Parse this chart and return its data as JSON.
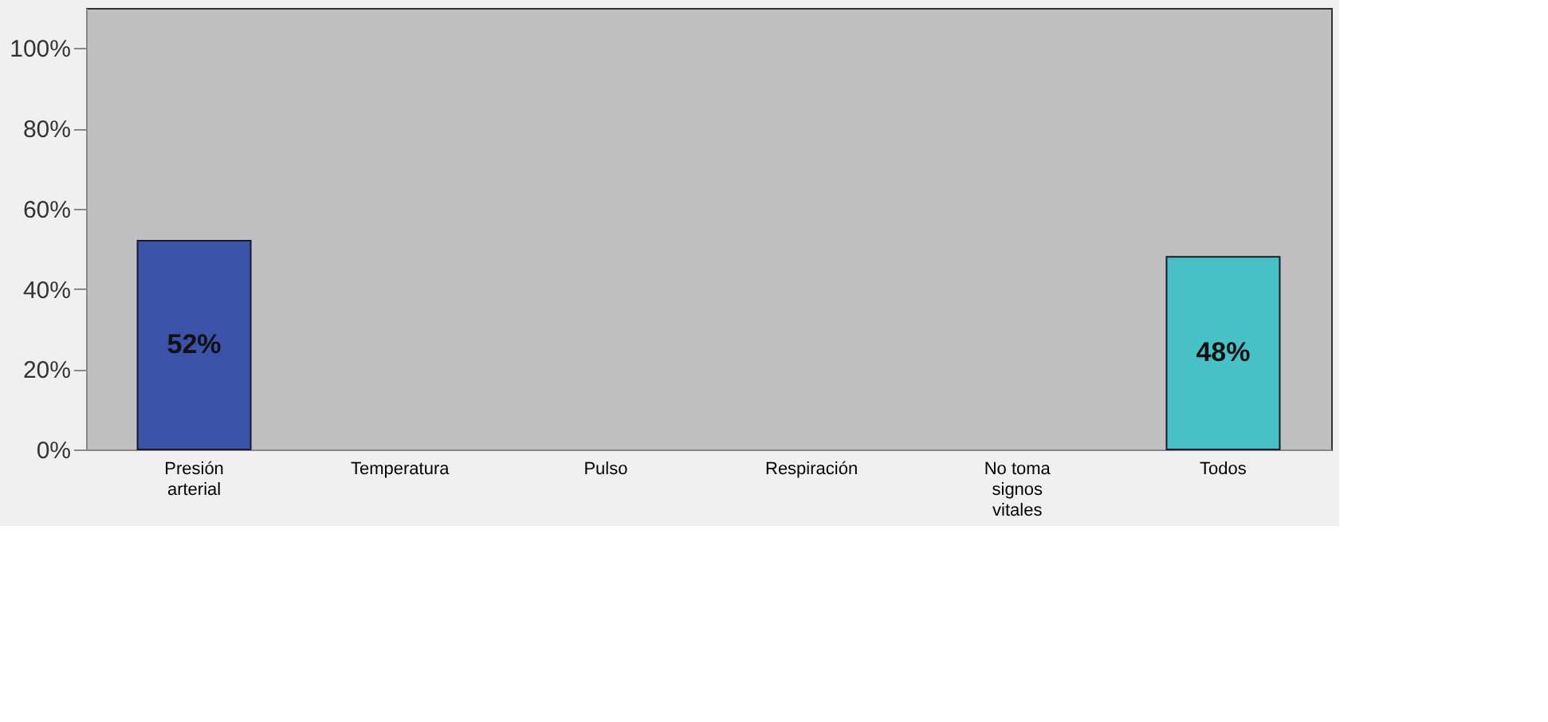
{
  "chart_data": {
    "type": "bar",
    "categories": [
      "Presión arterial",
      "Temperatura",
      "Pulso",
      "Respiración",
      "No toma signos vitales",
      "Todos"
    ],
    "values": [
      52,
      0,
      0,
      0,
      0,
      48
    ],
    "colors": [
      "#3a53a8",
      "#3a53a8",
      "#3a53a8",
      "#3a53a8",
      "#48c1c6",
      "#48c1c6"
    ],
    "value_labels": [
      "52%",
      null,
      null,
      null,
      null,
      "48%"
    ],
    "ylim": [
      0,
      110
    ],
    "yticks": [
      {
        "value": 0,
        "label": "0%"
      },
      {
        "value": 20,
        "label": "20%"
      },
      {
        "value": 40,
        "label": "40%"
      },
      {
        "value": 60,
        "label": "60%"
      },
      {
        "value": 80,
        "label": "80%"
      },
      {
        "value": 100,
        "label": "100%"
      }
    ],
    "grid": false
  }
}
